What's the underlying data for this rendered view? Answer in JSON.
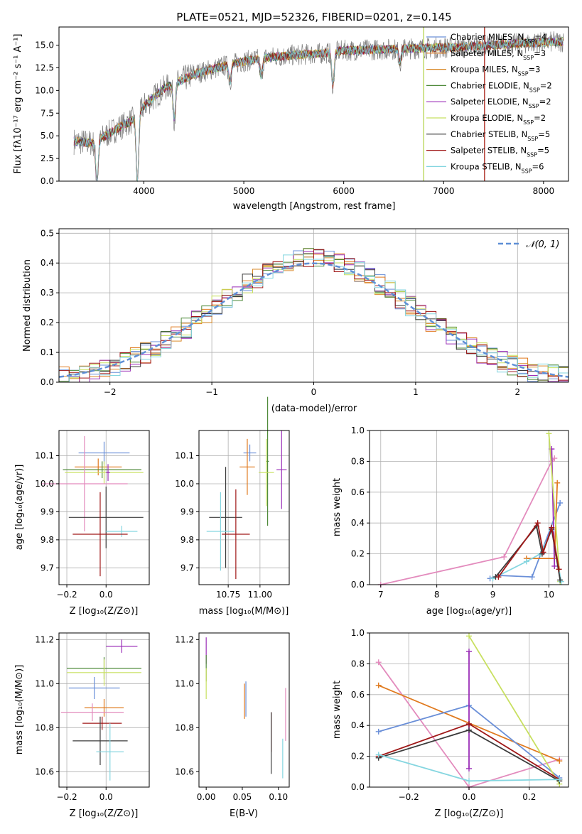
{
  "figure": {
    "title": "PLATE=0521, MJD=52326, FIBERID=0201, z=0.145"
  },
  "colors": {
    "series": [
      "#6a8fd8",
      "#e07a1f",
      "#d98a2a",
      "#4f8a3a",
      "#9b2fb8",
      "#c8e060",
      "#3b3b3b",
      "#a01818",
      "#85d6e0"
    ],
    "pink": "#e38bbd",
    "normal": "#5f8fd6",
    "grid": "#b0b0b0",
    "spectrum": "#7f7f7f"
  },
  "chart_data": [
    {
      "id": "spectrum",
      "type": "line",
      "xlabel": "wavelength [Angstrom, rest frame]",
      "ylabel": "Flux [fλ10⁻¹⁷ erg cm⁻² s⁻¹ A⁻¹]",
      "xlim": [
        3150,
        8250
      ],
      "ylim": [
        0,
        17
      ],
      "xticks": [
        4000,
        5000,
        6000,
        7000,
        8000
      ],
      "yticks": [
        0.0,
        2.5,
        5.0,
        7.5,
        10.0,
        12.5,
        15.0
      ],
      "grid": false,
      "legend_position": "top-right",
      "series": [
        {
          "name": "Chabrier MILES, N_SSP=4",
          "color_index": 0
        },
        {
          "name": "Salpeter MILES, N_SSP=3",
          "color_index": 1
        },
        {
          "name": "Kroupa MILES, N_SSP=3",
          "color_index": 2
        },
        {
          "name": "Chabrier ELODIE, N_SSP=2",
          "color_index": 3
        },
        {
          "name": "Salpeter ELODIE, N_SSP=2",
          "color_index": 4
        },
        {
          "name": "Kroupa ELODIE, N_SSP=2",
          "color_index": 5
        },
        {
          "name": "Chabrier STELIB, N_SSP=5",
          "color_index": 6
        },
        {
          "name": "Salpeter STELIB, N_SSP=5",
          "color_index": 7
        },
        {
          "name": "Kroupa STELIB, N_SSP=6",
          "color_index": 8
        }
      ],
      "continuum": {
        "x": [
          3300,
          3500,
          3700,
          3900,
          4000,
          4200,
          4500,
          4800,
          5000,
          5200,
          5500,
          5800,
          6000,
          6300,
          6600,
          6900,
          7200,
          7500,
          7800,
          8000,
          8200
        ],
        "y": [
          4.4,
          4.2,
          5.6,
          6.8,
          8.3,
          10.2,
          11.8,
          12.7,
          13.2,
          13.6,
          13.9,
          14.1,
          14.4,
          14.5,
          14.6,
          14.7,
          14.8,
          15.0,
          15.2,
          15.3,
          15.4
        ]
      },
      "absorption_lines": [
        {
          "x": 3530,
          "depth": 1.0
        },
        {
          "x": 3935,
          "depth": 1.0
        },
        {
          "x": 4305,
          "depth": 0.35
        },
        {
          "x": 4862,
          "depth": 0.15
        },
        {
          "x": 5175,
          "depth": 0.15
        },
        {
          "x": 5892,
          "depth": 0.25
        },
        {
          "x": 6563,
          "depth": 0.1
        }
      ],
      "model_cutoffs": [
        {
          "x": 6800,
          "color_index": 3
        },
        {
          "x": 6800,
          "color_index": 5
        },
        {
          "x": 7410,
          "color_index": 1
        },
        {
          "x": 7410,
          "color_index": 7
        }
      ]
    },
    {
      "id": "residual-distribution",
      "type": "line",
      "xlabel": "(data-model)/error",
      "ylabel": "Normed distribution",
      "xlim": [
        -2.5,
        2.5
      ],
      "ylim": [
        0,
        0.515
      ],
      "xticks": [
        -2,
        -1,
        0,
        1,
        2
      ],
      "yticks": [
        0.0,
        0.1,
        0.2,
        0.3,
        0.4,
        0.5
      ],
      "grid": true,
      "legend_position": "top-right",
      "normal_label": "𝒩(0, 1)",
      "bin_width": 0.1
    },
    {
      "id": "age-vs-Z",
      "type": "scatter",
      "xlabel": "Z [log₁₀(Z/Z⊙)]",
      "ylabel": "age  [log₁₀(age/yr)]",
      "xlim": [
        -0.24,
        0.22
      ],
      "ylim": [
        9.64,
        10.19
      ],
      "xticks": [
        -0.2,
        0.0
      ],
      "yticks": [
        9.7,
        9.8,
        9.9,
        10.0,
        10.1
      ],
      "grid": true,
      "points": [
        {
          "x": -0.01,
          "y": 10.11,
          "xerr": 0.13,
          "yerr": 0.04,
          "color_index": 0
        },
        {
          "x": -0.04,
          "y": 10.06,
          "xerr": 0.12,
          "yerr": 0.03,
          "color_index": 1
        },
        {
          "x": -0.02,
          "y": 10.05,
          "xerr": 0.2,
          "yerr": 0.03,
          "color_index": 3
        },
        {
          "x": -0.01,
          "y": 10.04,
          "xerr": 0.2,
          "yerr": 0.04,
          "color_index": 5
        },
        {
          "x": 0.01,
          "y": 10.04,
          "xerr": 0.01,
          "yerr": 0.03,
          "color_index": 4
        },
        {
          "x": -0.11,
          "y": 10.0,
          "xerr": 0.22,
          "yerr": 0.17,
          "color_index": 9
        },
        {
          "x": 0.0,
          "y": 9.88,
          "xerr": 0.19,
          "yerr": 0.11,
          "color_index": 6
        },
        {
          "x": 0.08,
          "y": 9.83,
          "xerr": 0.08,
          "yerr": 0.02,
          "color_index": 8
        },
        {
          "x": -0.03,
          "y": 9.82,
          "xerr": 0.14,
          "yerr": 0.15,
          "color_index": 7
        }
      ]
    },
    {
      "id": "age-vs-mass",
      "type": "scatter",
      "xlabel": "mass [log₁₀(M/M⊙)]",
      "ylabel": "",
      "xlim": [
        10.52,
        11.23
      ],
      "ylim": [
        9.64,
        10.19
      ],
      "xticks": [
        10.75,
        11.0
      ],
      "yticks": [
        9.7,
        9.8,
        9.9,
        10.0,
        10.1
      ],
      "grid": true,
      "points": [
        {
          "x": 10.92,
          "y": 10.11,
          "xerr": 0.05,
          "yerr": 0.03,
          "color_index": 0
        },
        {
          "x": 10.9,
          "y": 10.06,
          "xerr": 0.06,
          "yerr": 0.1,
          "color_index": 1
        },
        {
          "x": 11.06,
          "y": 10.08,
          "xerr": 0.01,
          "yerr": 0.23,
          "color_index": 3
        },
        {
          "x": 11.05,
          "y": 10.04,
          "xerr": 0.06,
          "yerr": 0.12,
          "color_index": 5
        },
        {
          "x": 11.17,
          "y": 10.05,
          "xerr": 0.04,
          "yerr": 0.14,
          "color_index": 4
        },
        {
          "x": 10.73,
          "y": 9.88,
          "xerr": 0.13,
          "yerr": 0.18,
          "color_index": 6
        },
        {
          "x": 10.69,
          "y": 9.83,
          "xerr": 0.11,
          "yerr": 0.14,
          "color_index": 8
        },
        {
          "x": 10.81,
          "y": 9.82,
          "xerr": 0.11,
          "yerr": 0.16,
          "color_index": 7
        }
      ]
    },
    {
      "id": "weight-vs-age",
      "type": "line",
      "xlabel": "age  [log₁₀(age/yr)]",
      "ylabel": "mass weight",
      "xlim": [
        6.8,
        10.35
      ],
      "ylim": [
        0,
        1.0
      ],
      "xticks": [
        7,
        8,
        9,
        10
      ],
      "yticks": [
        0.0,
        0.2,
        0.4,
        0.6,
        0.8,
        1.0
      ],
      "grid": true,
      "series": [
        {
          "color_index": 9,
          "x": [
            7.0,
            9.2,
            10.05,
            10.1
          ],
          "y": [
            0.0,
            0.18,
            0.8,
            0.82
          ]
        },
        {
          "color_index": 0,
          "x": [
            8.95,
            9.1,
            9.7,
            10.2
          ],
          "y": [
            0.04,
            0.06,
            0.05,
            0.53
          ]
        },
        {
          "color_index": 1,
          "x": [
            9.6,
            10.1,
            10.15
          ],
          "y": [
            0.17,
            0.17,
            0.66
          ]
        },
        {
          "color_index": 4,
          "x": [
            10.05,
            10.1
          ],
          "y": [
            0.88,
            0.12
          ]
        },
        {
          "color_index": 5,
          "x": [
            10.0,
            10.2
          ],
          "y": [
            0.98,
            0.02
          ]
        },
        {
          "color_index": 8,
          "x": [
            9.0,
            9.6,
            9.85,
            10.05,
            10.22
          ],
          "y": [
            0.04,
            0.15,
            0.2,
            0.35,
            0.02
          ]
        },
        {
          "color_index": 6,
          "x": [
            9.05,
            9.78,
            9.88,
            10.05,
            10.2
          ],
          "y": [
            0.05,
            0.38,
            0.2,
            0.36,
            0.03
          ]
        },
        {
          "color_index": 7,
          "x": [
            9.1,
            9.8,
            9.9,
            10.05,
            10.18
          ],
          "y": [
            0.05,
            0.4,
            0.21,
            0.37,
            0.1
          ]
        }
      ]
    },
    {
      "id": "mass-vs-Z",
      "type": "scatter",
      "xlabel": "Z [log₁₀(Z/Z⊙)]",
      "ylabel": "mass [log₁₀(M/M⊙)]",
      "xlim": [
        -0.24,
        0.22
      ],
      "ylim": [
        10.53,
        11.23
      ],
      "xticks": [
        -0.2,
        0.0
      ],
      "yticks": [
        10.6,
        10.8,
        11.0,
        11.2
      ],
      "grid": true,
      "points": [
        {
          "x": 0.08,
          "y": 11.17,
          "xerr": 0.08,
          "yerr": 0.03,
          "color_index": 4
        },
        {
          "x": -0.01,
          "y": 11.07,
          "xerr": 0.19,
          "yerr": 0.05,
          "color_index": 3
        },
        {
          "x": -0.01,
          "y": 11.05,
          "xerr": 0.19,
          "yerr": 0.06,
          "color_index": 5
        },
        {
          "x": -0.06,
          "y": 10.98,
          "xerr": 0.13,
          "yerr": 0.05,
          "color_index": 0
        },
        {
          "x": -0.01,
          "y": 10.89,
          "xerr": 0.1,
          "yerr": 0.04,
          "color_index": 1
        },
        {
          "x": -0.07,
          "y": 10.87,
          "xerr": 0.16,
          "yerr": 0.04,
          "color_index": 9
        },
        {
          "x": -0.02,
          "y": 10.82,
          "xerr": 0.1,
          "yerr": 0.03,
          "color_index": 7
        },
        {
          "x": -0.03,
          "y": 10.74,
          "xerr": 0.14,
          "yerr": 0.11,
          "color_index": 6
        },
        {
          "x": 0.02,
          "y": 10.69,
          "xerr": 0.07,
          "yerr": 0.13,
          "color_index": 8
        }
      ]
    },
    {
      "id": "mass-vs-EBV",
      "type": "scatter",
      "xlabel": "E(B-V)",
      "ylabel": "",
      "xlim": [
        -0.01,
        0.115
      ],
      "ylim": [
        10.53,
        11.23
      ],
      "xticks": [
        0.0,
        0.05,
        0.1
      ],
      "yticks": [
        10.6,
        10.8,
        11.0,
        11.2
      ],
      "grid": false,
      "points": [
        {
          "x": 0.0,
          "y": 11.15,
          "xerr": 0.0,
          "yerr": 0.06,
          "color_index": 4
        },
        {
          "x": 0.0,
          "y": 11.07,
          "xerr": 0.0,
          "yerr": 0.06,
          "color_index": 3
        },
        {
          "x": 0.0,
          "y": 11.0,
          "xerr": 0.0,
          "yerr": 0.07,
          "color_index": 5
        },
        {
          "x": 0.055,
          "y": 10.93,
          "xerr": 0.0,
          "yerr": 0.08,
          "color_index": 0
        },
        {
          "x": 0.053,
          "y": 10.92,
          "xerr": 0.0,
          "yerr": 0.08,
          "color_index": 1
        },
        {
          "x": 0.09,
          "y": 10.78,
          "xerr": 0.0,
          "yerr": 0.09,
          "color_index": 7
        },
        {
          "x": 0.09,
          "y": 10.73,
          "xerr": 0.0,
          "yerr": 0.14,
          "color_index": 6
        },
        {
          "x": 0.11,
          "y": 10.86,
          "xerr": 0.0,
          "yerr": 0.12,
          "color_index": 9
        },
        {
          "x": 0.106,
          "y": 10.66,
          "xerr": 0.0,
          "yerr": 0.09,
          "color_index": 8
        }
      ]
    },
    {
      "id": "weight-vs-Z",
      "type": "line",
      "xlabel": "Z [log₁₀(Z/Z⊙)]",
      "ylabel": "mass weight",
      "xlim": [
        -0.33,
        0.33
      ],
      "ylim": [
        0,
        1.0
      ],
      "xticks": [
        -0.2,
        0.0,
        0.2
      ],
      "yticks": [
        0.0,
        0.2,
        0.4,
        0.6,
        0.8,
        1.0
      ],
      "grid": true,
      "series": [
        {
          "color_index": 9,
          "x": [
            -0.3,
            0.0,
            0.3
          ],
          "y": [
            0.81,
            0.0,
            0.18
          ]
        },
        {
          "color_index": 1,
          "x": [
            -0.3,
            0.3
          ],
          "y": [
            0.66,
            0.17
          ]
        },
        {
          "color_index": 0,
          "x": [
            -0.3,
            0.0,
            0.3
          ],
          "y": [
            0.36,
            0.53,
            0.06
          ]
        },
        {
          "color_index": 5,
          "x": [
            0.0,
            0.3
          ],
          "y": [
            0.98,
            0.02
          ]
        },
        {
          "color_index": 4,
          "x": [
            0.0,
            0.0
          ],
          "y": [
            0.88,
            0.12
          ]
        },
        {
          "color_index": 7,
          "x": [
            -0.3,
            0.0,
            0.3
          ],
          "y": [
            0.2,
            0.41,
            0.05
          ]
        },
        {
          "color_index": 6,
          "x": [
            -0.3,
            0.0,
            0.3
          ],
          "y": [
            0.19,
            0.37,
            0.04
          ]
        },
        {
          "color_index": 8,
          "x": [
            -0.3,
            0.0,
            0.3
          ],
          "y": [
            0.21,
            0.04,
            0.05
          ]
        }
      ]
    }
  ]
}
